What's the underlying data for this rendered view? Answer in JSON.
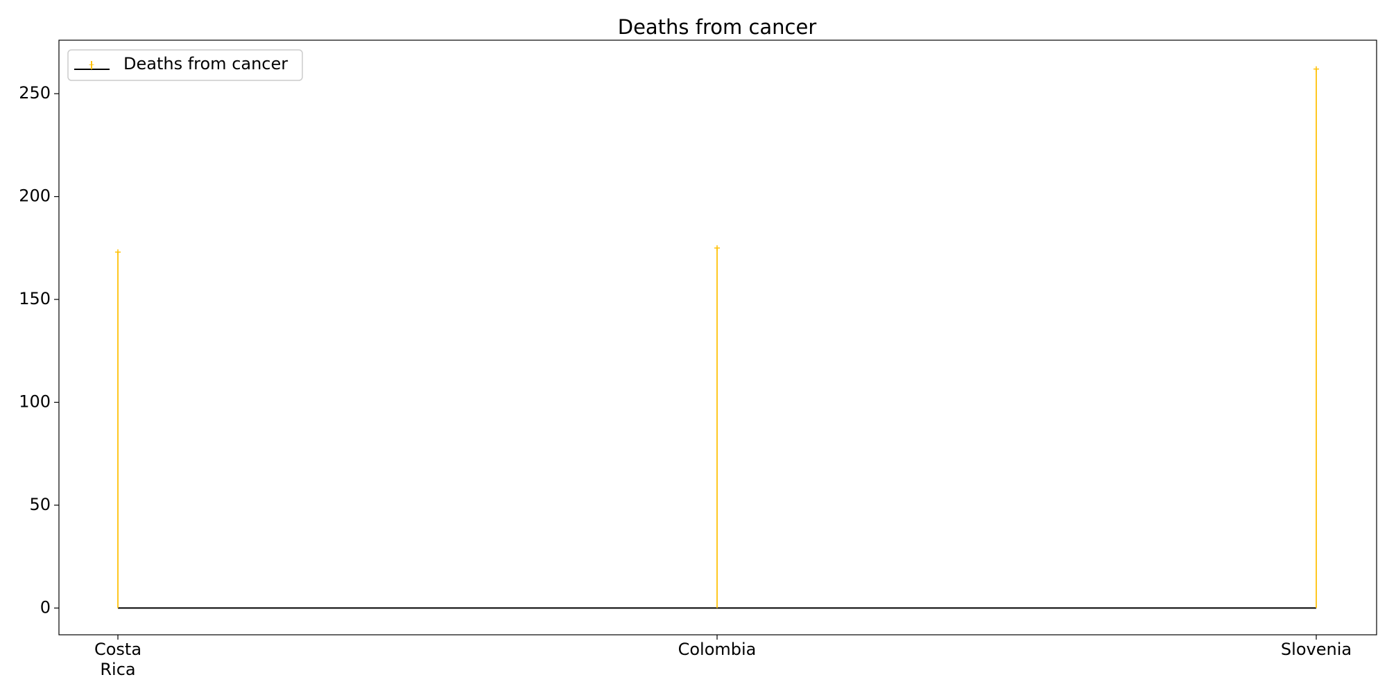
{
  "chart_data": {
    "type": "stem",
    "title": "Deaths from cancer",
    "xlabel": "",
    "ylabel": "",
    "categories": [
      [
        "Costa",
        "Rica"
      ],
      [
        "Colombia"
      ],
      [
        "Slovenia"
      ]
    ],
    "series": [
      {
        "name": "Deaths from cancer",
        "values": [
          173,
          175,
          262
        ],
        "color": "#ffc107",
        "baseline_color": "#000000"
      }
    ],
    "ylim": [
      -13,
      276
    ],
    "y_ticks": [
      0,
      50,
      100,
      150,
      200,
      250
    ],
    "grid": false,
    "legend": "top-left"
  }
}
